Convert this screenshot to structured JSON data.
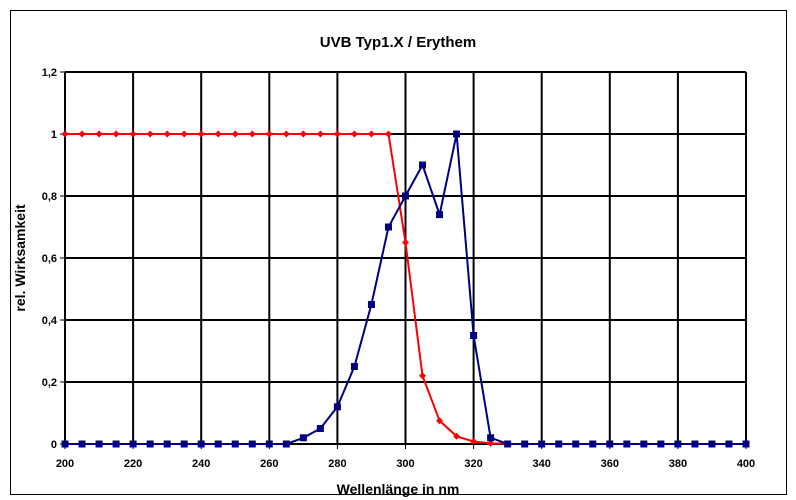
{
  "chart_data": {
    "type": "line",
    "title": "UVB Typ1.X / Erythem",
    "xlabel": "Wellenlänge in nm",
    "ylabel": "rel. Wirksamkeit",
    "xlim": [
      200,
      400
    ],
    "ylim": [
      0,
      1.2
    ],
    "x_ticks": [
      200,
      220,
      240,
      260,
      280,
      300,
      320,
      340,
      360,
      380,
      400
    ],
    "x_tick_labels": [
      "200",
      "220",
      "240",
      "260",
      "280",
      "300",
      "320",
      "340",
      "360",
      "380",
      "400"
    ],
    "y_ticks": [
      0,
      0.2,
      0.4,
      0.6,
      0.8,
      1,
      1.2
    ],
    "y_tick_labels": [
      "0",
      "0,2",
      "0,4",
      "0,6",
      "0,8",
      "1",
      "1,2"
    ],
    "grid": true,
    "series": [
      {
        "color": "#ff0000",
        "marker": "diamond",
        "x": [
          200,
          205,
          210,
          215,
          220,
          225,
          230,
          235,
          240,
          245,
          250,
          255,
          260,
          265,
          270,
          275,
          280,
          285,
          290,
          295,
          300,
          305,
          310,
          315,
          320,
          325,
          330
        ],
        "y": [
          1,
          1,
          1,
          1,
          1,
          1,
          1,
          1,
          1,
          1,
          1,
          1,
          1,
          1,
          1,
          1,
          1,
          1,
          1,
          1,
          0.65,
          0.22,
          0.075,
          0.025,
          0.008,
          0.002,
          0.0005
        ]
      },
      {
        "color": "#000080",
        "marker": "square",
        "x": [
          200,
          205,
          210,
          215,
          220,
          225,
          230,
          235,
          240,
          245,
          250,
          255,
          260,
          265,
          270,
          275,
          280,
          285,
          290,
          295,
          300,
          305,
          310,
          315,
          320,
          325,
          330,
          335,
          340,
          345,
          350,
          355,
          360,
          365,
          370,
          375,
          380,
          385,
          390,
          395,
          400
        ],
        "y": [
          0,
          0,
          0,
          0,
          0,
          0,
          0,
          0,
          0,
          0,
          0,
          0,
          0,
          0,
          0.02,
          0.05,
          0.12,
          0.25,
          0.45,
          0.7,
          0.8,
          0.9,
          0.74,
          1,
          0.35,
          0.02,
          0,
          0,
          0,
          0,
          0,
          0,
          0,
          0,
          0,
          0,
          0,
          0,
          0,
          0,
          0
        ]
      }
    ]
  }
}
